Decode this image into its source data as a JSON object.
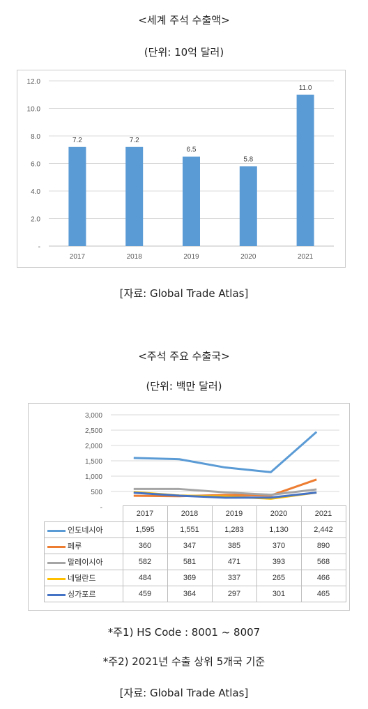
{
  "titles": {
    "chart1_title": "<세계 주석 수출액>",
    "chart1_unit": "(단위: 10억 달러)",
    "chart1_source": "[자료:  Global Trade Atlas]",
    "chart2_title": "<주석 주요 수출국>",
    "chart2_unit": "(단위: 백만 달러)",
    "note1": "*주1) HS Code : 8001 ~ 8007",
    "note2": "*주2) 2021년 수출 상위 5개국 기준",
    "chart2_source": "[자료:  Global Trade Atlas]"
  },
  "chart_data": [
    {
      "type": "bar",
      "categories": [
        "2017",
        "2018",
        "2019",
        "2020",
        "2021"
      ],
      "values": [
        7.2,
        7.2,
        6.5,
        5.8,
        11.0
      ],
      "value_labels": [
        "7.2",
        "7.2",
        "6.5",
        "5.8",
        "11.0"
      ],
      "ylim": [
        0,
        12
      ],
      "yticks": [
        "-",
        "2.0",
        "4.0",
        "6.0",
        "8.0",
        "10.0",
        "12.0"
      ],
      "grid": true,
      "bar_color": "#5b9bd5"
    },
    {
      "type": "line",
      "x": [
        "2017",
        "2018",
        "2019",
        "2020",
        "2021"
      ],
      "ylim": [
        0,
        3000
      ],
      "yticks": [
        "-",
        "500",
        "1,000",
        "1,500",
        "2,000",
        "2,500",
        "3,000"
      ],
      "grid": true,
      "legend": "data table",
      "series": [
        {
          "name": "인도네시아",
          "color": "#5b9bd5",
          "values": [
            1595,
            1551,
            1283,
            1130,
            2442
          ],
          "labels": [
            "1,595",
            "1,551",
            "1,283",
            "1,130",
            "2,442"
          ]
        },
        {
          "name": "페루",
          "color": "#ed7d31",
          "values": [
            360,
            347,
            385,
            370,
            890
          ],
          "labels": [
            "360",
            "347",
            "385",
            "370",
            "890"
          ]
        },
        {
          "name": "말레이시아",
          "color": "#a5a5a5",
          "values": [
            582,
            581,
            471,
            393,
            568
          ],
          "labels": [
            "582",
            "581",
            "471",
            "393",
            "568"
          ]
        },
        {
          "name": "네덜란드",
          "color": "#ffc000",
          "values": [
            484,
            369,
            337,
            265,
            466
          ],
          "labels": [
            "484",
            "369",
            "337",
            "265",
            "466"
          ]
        },
        {
          "name": "싱가포르",
          "color": "#4472c4",
          "values": [
            459,
            364,
            297,
            301,
            465
          ],
          "labels": [
            "459",
            "364",
            "297",
            "301",
            "465"
          ]
        }
      ]
    }
  ]
}
